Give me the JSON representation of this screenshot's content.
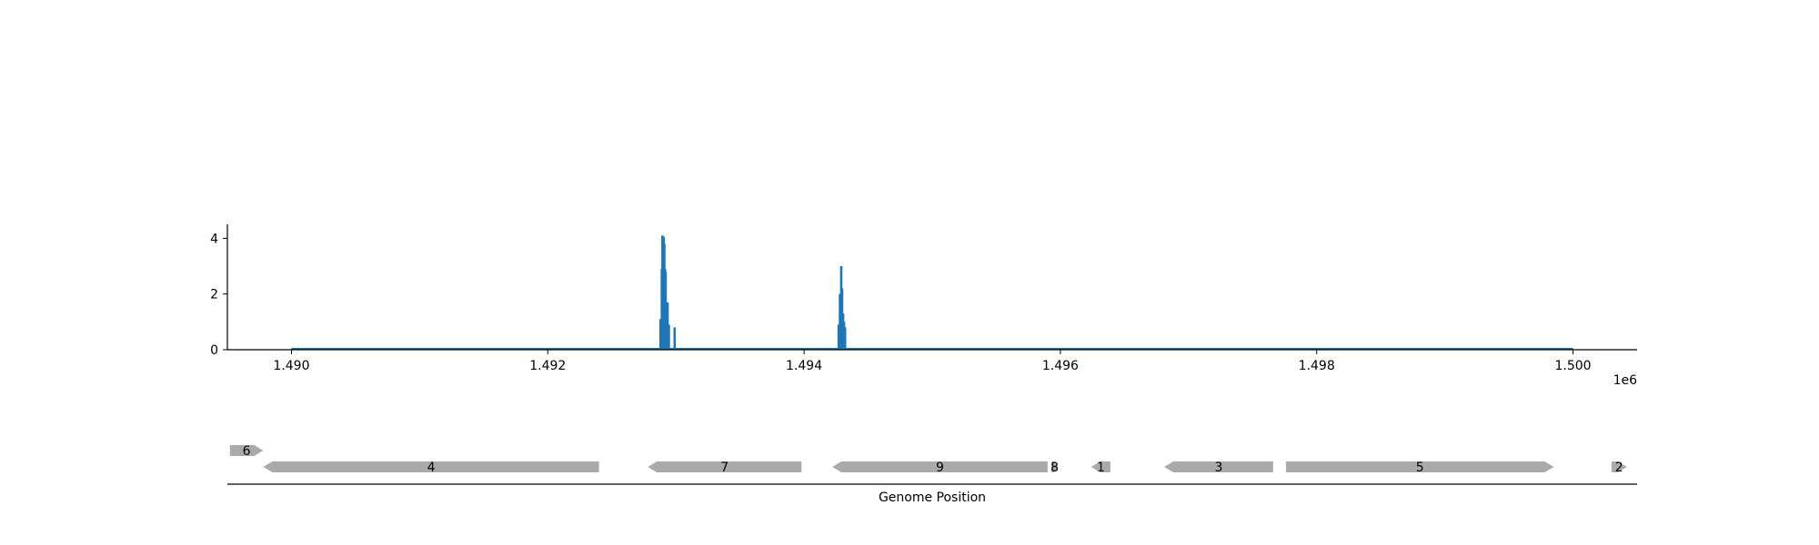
{
  "chart_data": [
    {
      "type": "area",
      "title": "",
      "xlabel": "",
      "ylabel": "",
      "x_offset_label": "1e6",
      "xlim": [
        1489500,
        1500500
      ],
      "ylim": [
        0,
        4.5
      ],
      "xticks": [
        1490000,
        1492000,
        1494000,
        1496000,
        1498000,
        1500000
      ],
      "xtick_labels": [
        "1.490",
        "1.492",
        "1.494",
        "1.496",
        "1.498",
        "1.500"
      ],
      "yticks": [
        0,
        2,
        4
      ],
      "ytick_labels": [
        "0",
        "2",
        "4"
      ],
      "grid": false,
      "line_color": "#1f77b4",
      "baseline_range": [
        1490000,
        1500000
      ],
      "series": [
        {
          "values": [
            {
              "x": 1492880,
              "y": 1.1
            },
            {
              "x": 1492890,
              "y": 2.9
            },
            {
              "x": 1492895,
              "y": 4.1
            },
            {
              "x": 1492900,
              "y": 4.0
            },
            {
              "x": 1492905,
              "y": 4.05
            },
            {
              "x": 1492910,
              "y": 3.8
            },
            {
              "x": 1492915,
              "y": 2.9
            },
            {
              "x": 1492920,
              "y": 2.8
            },
            {
              "x": 1492925,
              "y": 1.2
            },
            {
              "x": 1492935,
              "y": 1.7
            },
            {
              "x": 1492945,
              "y": 0.9
            },
            {
              "x": 1492990,
              "y": 0.8
            },
            {
              "x": 1494270,
              "y": 0.9
            },
            {
              "x": 1494280,
              "y": 2.0
            },
            {
              "x": 1494290,
              "y": 3.0
            },
            {
              "x": 1494297,
              "y": 2.2
            },
            {
              "x": 1494305,
              "y": 1.3
            },
            {
              "x": 1494312,
              "y": 1.0
            },
            {
              "x": 1494320,
              "y": 0.8
            }
          ]
        }
      ]
    },
    {
      "type": "gene_track",
      "xlabel": "Genome Position",
      "gene_color": "#aaaaaa",
      "genes": [
        {
          "label": "6",
          "start": 1489520,
          "end": 1489780,
          "strand": "+",
          "row": 1
        },
        {
          "label": "4",
          "start": 1489780,
          "end": 1492400,
          "strand": "-",
          "row": 0
        },
        {
          "label": "7",
          "start": 1492780,
          "end": 1493980,
          "strand": "-",
          "row": 0
        },
        {
          "label": "9",
          "start": 1494220,
          "end": 1495900,
          "strand": "-",
          "row": 0
        },
        {
          "label": "8",
          "start": 1495930,
          "end": 1495980,
          "strand": "+",
          "row": 0
        },
        {
          "label": "1",
          "start": 1496240,
          "end": 1496390,
          "strand": "-",
          "row": 0
        },
        {
          "label": "3",
          "start": 1496810,
          "end": 1497660,
          "strand": "-",
          "row": 0
        },
        {
          "label": "5",
          "start": 1497760,
          "end": 1499850,
          "strand": "+",
          "row": 0
        },
        {
          "label": "2",
          "start": 1500300,
          "end": 1500420,
          "strand": "+",
          "row": 0
        }
      ]
    }
  ]
}
